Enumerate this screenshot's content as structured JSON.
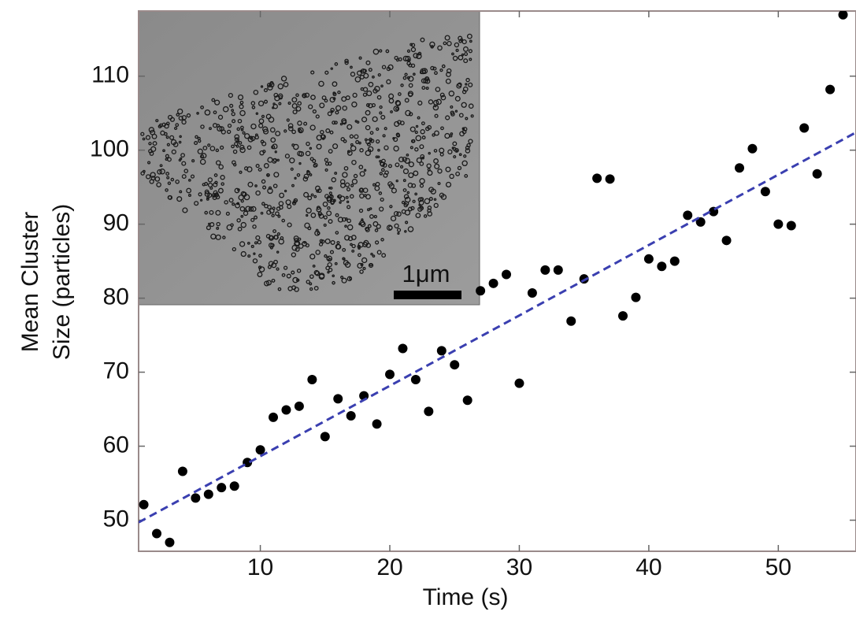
{
  "chart_data": {
    "type": "scatter",
    "xlabel": "Time (s)",
    "ylabel": [
      "Mean Cluster",
      "Size (particles)"
    ],
    "inset_label": "1μm",
    "xlim": [
      0.6,
      56
    ],
    "ylim": [
      45.8,
      118.8
    ],
    "xticks": [
      10,
      20,
      30,
      40,
      50
    ],
    "yticks": [
      50,
      60,
      70,
      80,
      90,
      100,
      110
    ],
    "series": [
      {
        "color": "#000000",
        "x": [
          1,
          2,
          3,
          4,
          5,
          6,
          7,
          8,
          9,
          10,
          11,
          12,
          13,
          14,
          15,
          16,
          17,
          18,
          19,
          20,
          21,
          22,
          23,
          24,
          25,
          26,
          27,
          28,
          29,
          30,
          31,
          32,
          33,
          34,
          35,
          36,
          37,
          38,
          39,
          40,
          41,
          42,
          43,
          44,
          45,
          46,
          47,
          48,
          49,
          50,
          51,
          52,
          53,
          54,
          55
        ],
        "values": [
          52.1,
          48.2,
          47.0,
          56.6,
          53.0,
          53.5,
          54.4,
          54.6,
          57.8,
          59.5,
          63.9,
          64.9,
          65.4,
          69.0,
          61.3,
          66.4,
          64.1,
          66.8,
          63.0,
          69.7,
          73.2,
          69.0,
          64.7,
          72.9,
          71.0,
          66.2,
          81.0,
          82.0,
          83.2,
          68.5,
          80.7,
          83.8,
          83.8,
          76.9,
          82.6,
          96.2,
          96.1,
          77.6,
          80.1,
          85.3,
          84.3,
          85.0,
          91.2,
          90.3,
          91.7,
          87.8,
          97.6,
          100.2,
          94.4,
          90.0,
          89.8,
          103.0,
          96.8,
          108.2,
          118.3
        ]
      }
    ],
    "fit": {
      "color": "#3a3fb0",
      "x": [
        0.6,
        56
      ],
      "values": [
        49.7,
        102.4
      ]
    }
  }
}
